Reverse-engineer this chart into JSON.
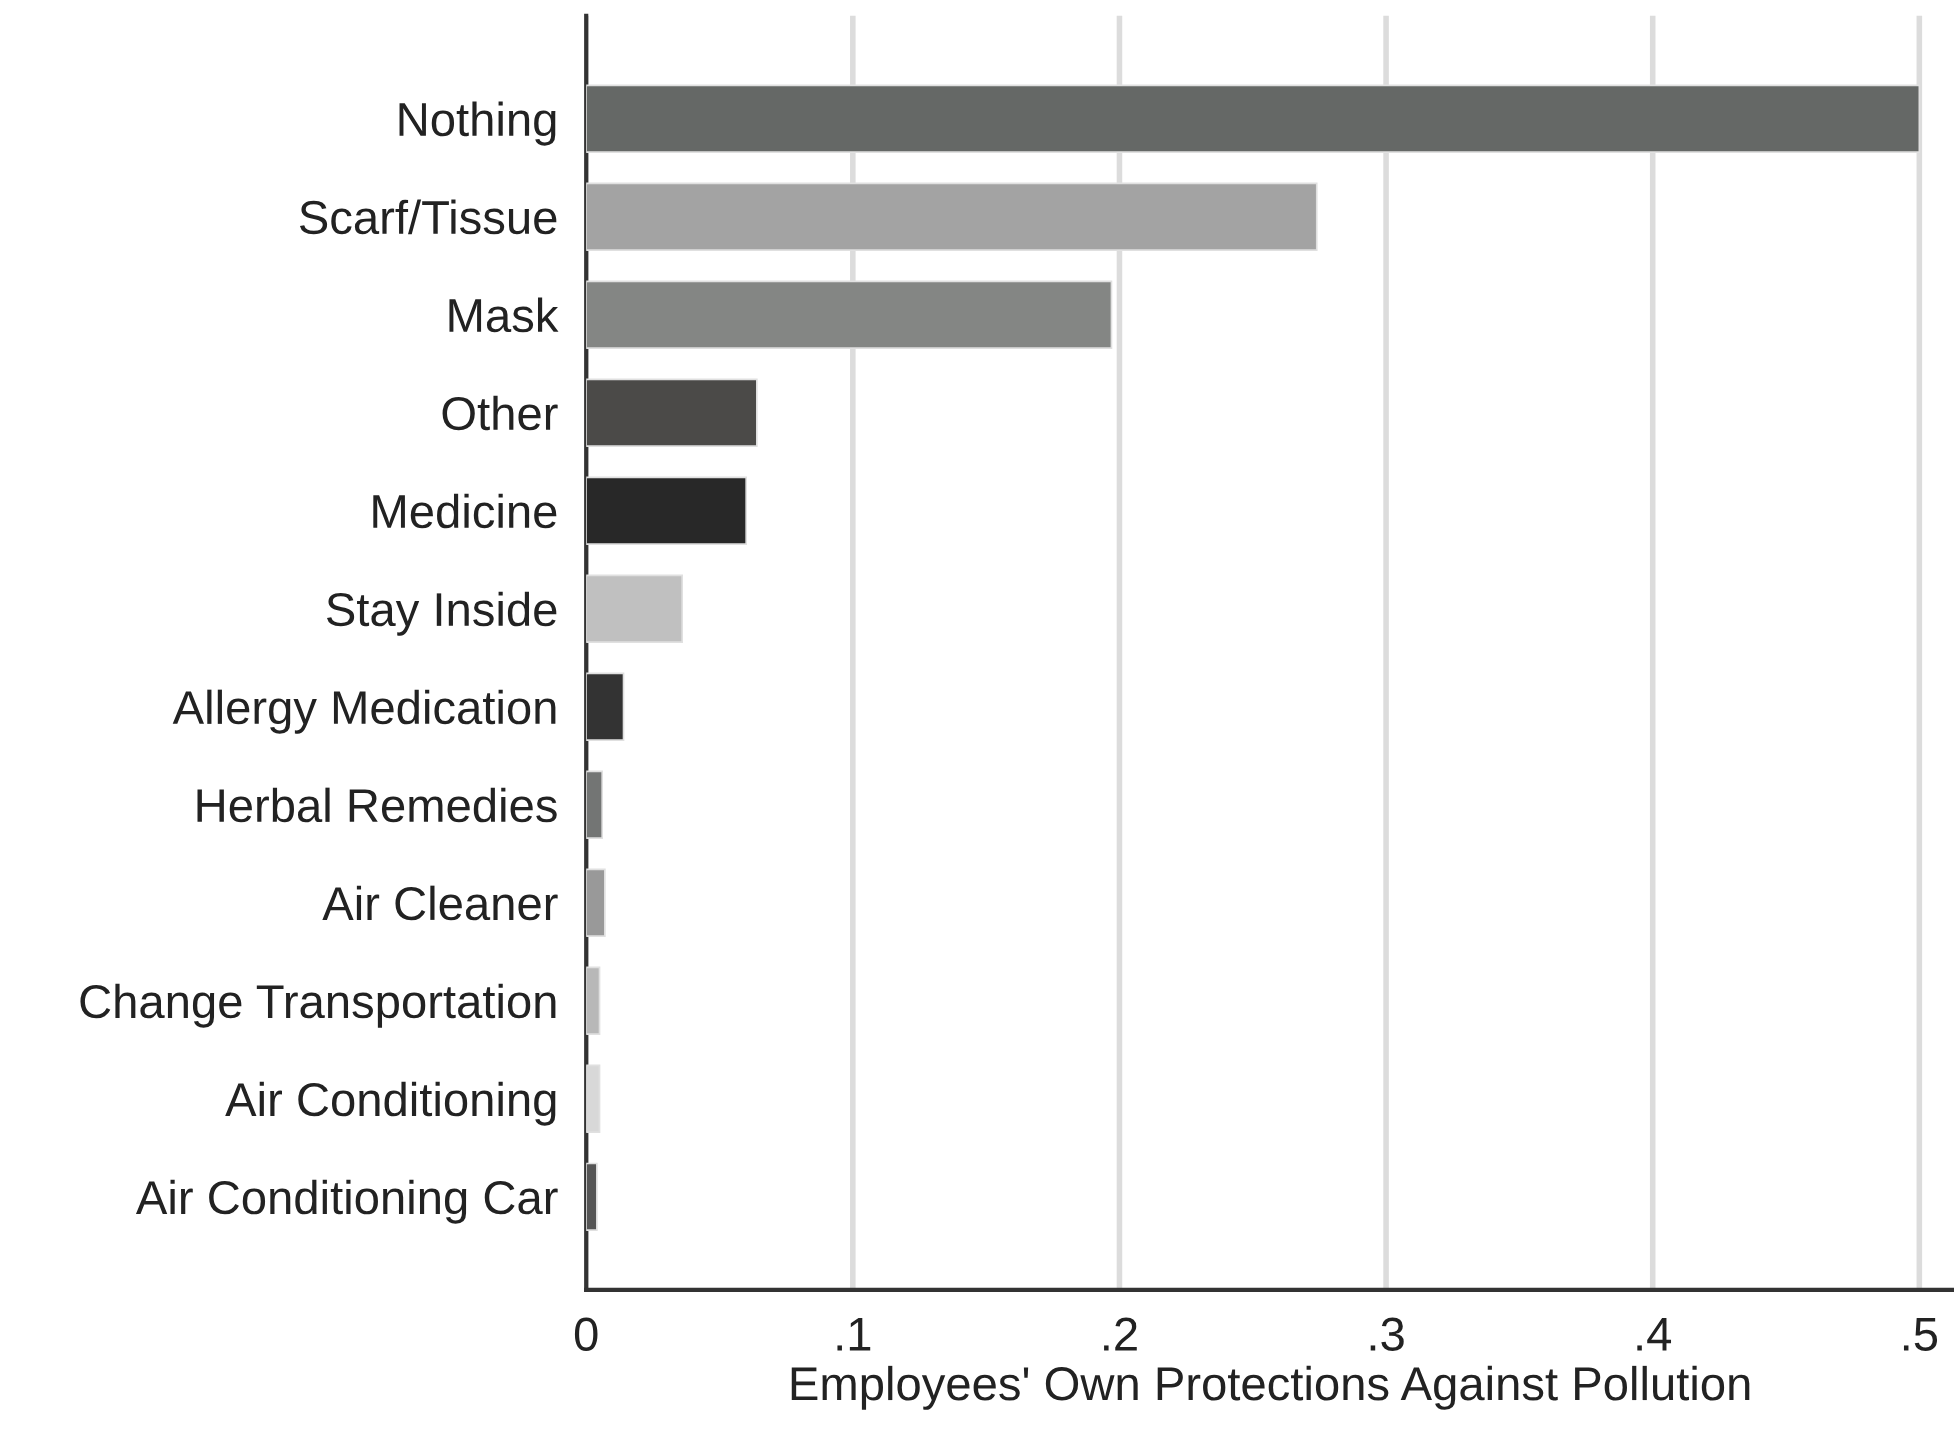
{
  "chart_data": {
    "type": "bar",
    "orientation": "horizontal",
    "xlabel": "Employees' Own Protections Against Pollution",
    "categories": [
      "Nothing",
      "Scarf/Tissue",
      "Mask",
      "Other",
      "Medicine",
      "Stay Inside",
      "Allergy Medication",
      "Herbal Remedies",
      "Air Cleaner",
      "Change Transportation",
      "Air Conditioning",
      "Air Conditioning Car"
    ],
    "values": [
      0.5,
      0.274,
      0.197,
      0.064,
      0.06,
      0.036,
      0.014,
      0.006,
      0.007,
      0.005,
      0.005,
      0.004
    ],
    "colors": [
      "#656866",
      "#a3a3a3",
      "#848684",
      "#4b4a48",
      "#282828",
      "#c0c0c0",
      "#333333",
      "#737574",
      "#999999",
      "#b8b8b8",
      "#d8d8d8",
      "#555555"
    ],
    "xlim": [
      0,
      0.513
    ],
    "xticks": [
      0,
      {
        "value": 0.1,
        "label": ".1"
      },
      {
        "value": 0.2,
        "label": ".2"
      },
      {
        "value": 0.3,
        "label": ".3"
      },
      {
        "value": 0.4,
        "label": ".4"
      },
      {
        "value": 0.5,
        "label": ".5"
      }
    ],
    "grid": "x",
    "legend": false
  }
}
